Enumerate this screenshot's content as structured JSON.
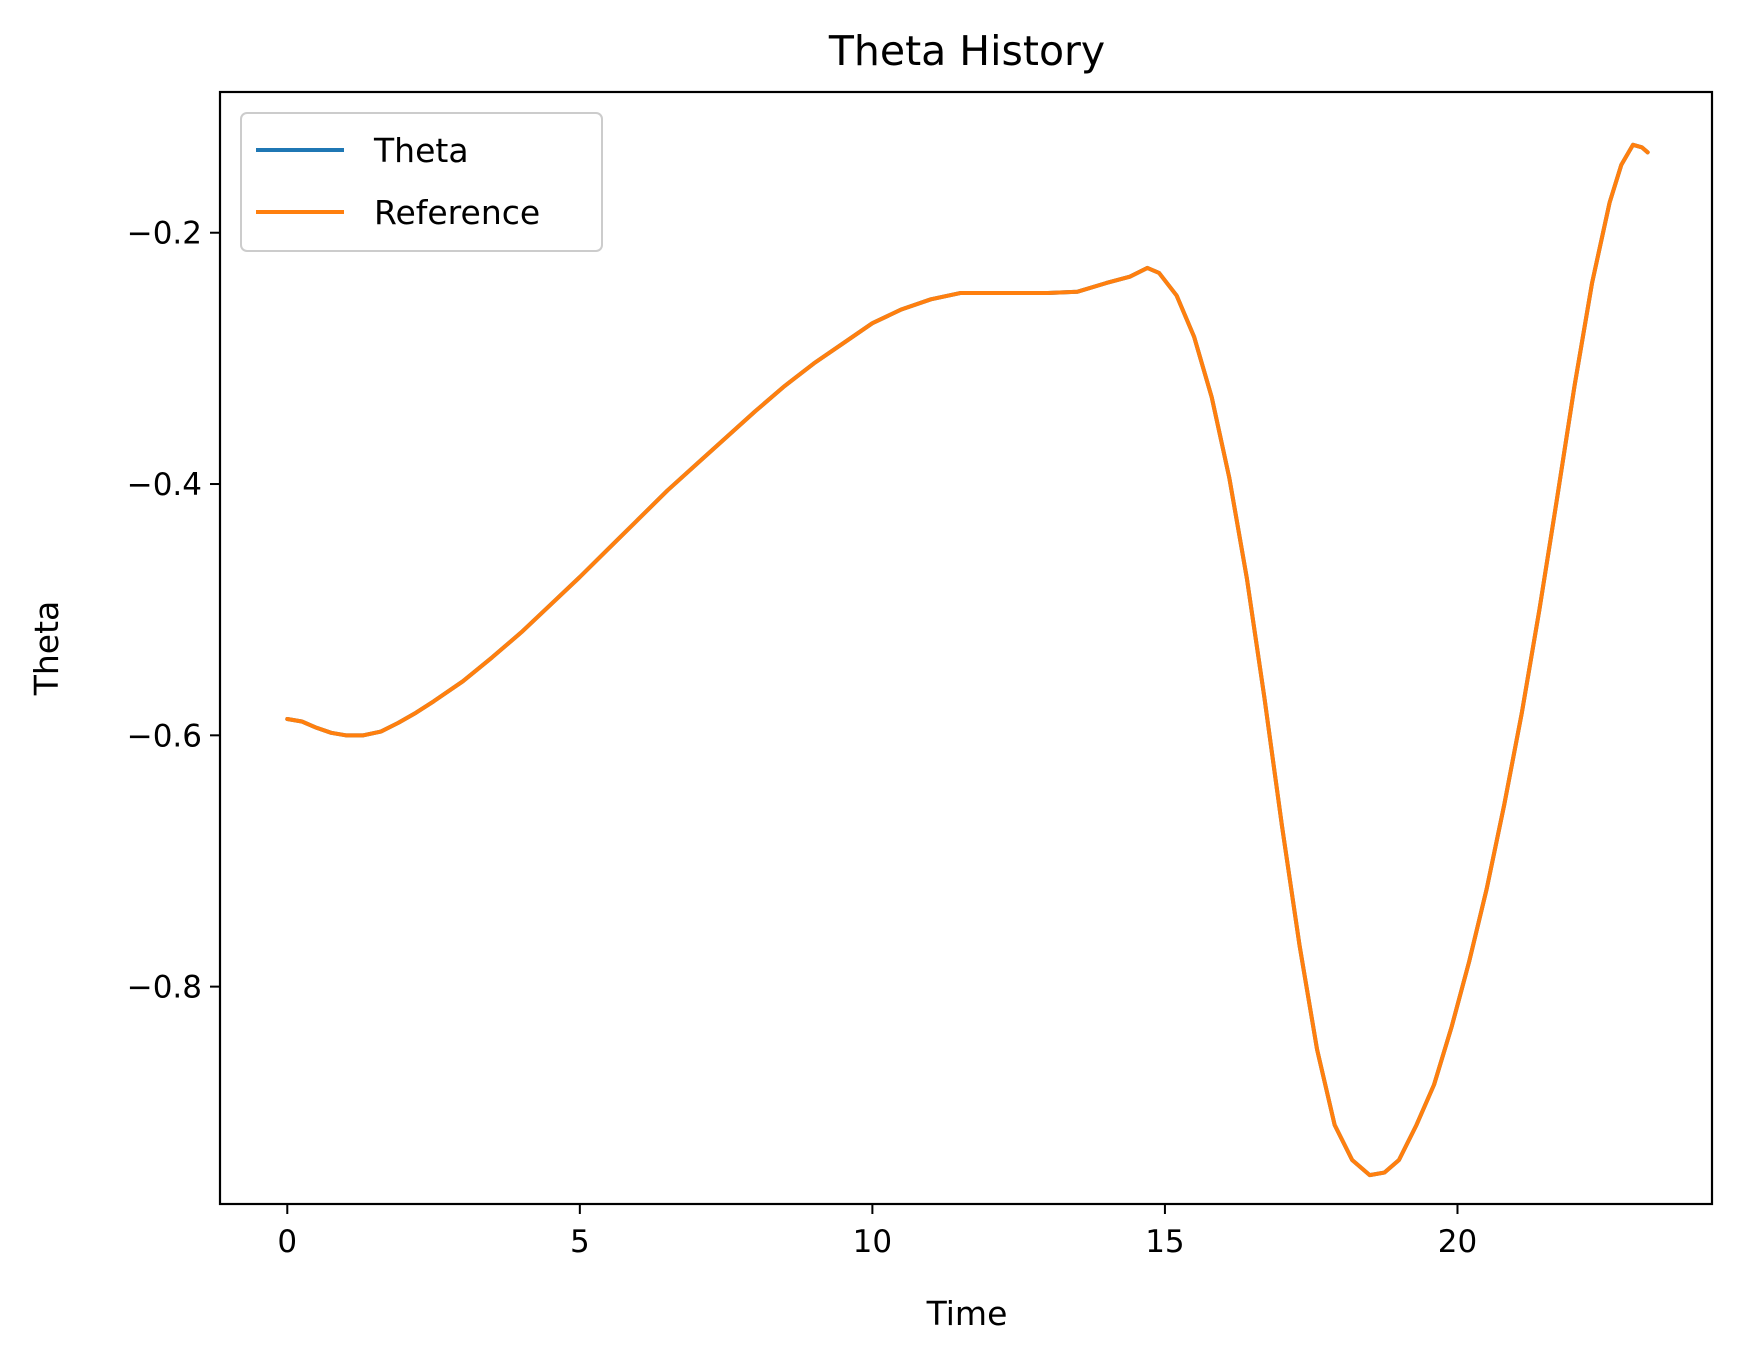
{
  "chart_data": {
    "type": "line",
    "title": "Theta History",
    "xlabel": "Time",
    "ylabel": "Theta",
    "xlim": [
      -1.15,
      24.35
    ],
    "ylim": [
      -0.973,
      -0.088
    ],
    "xticks": [
      0,
      5,
      10,
      15,
      20
    ],
    "xtick_labels": [
      "0",
      "5",
      "10",
      "15",
      "20"
    ],
    "yticks": [
      -0.2,
      -0.4,
      -0.6,
      -0.8
    ],
    "ytick_labels": [
      "−0.2",
      "−0.4",
      "−0.6",
      "−0.8"
    ],
    "grid": false,
    "legend": {
      "position": "upper-left",
      "entries": [
        "Theta",
        "Reference"
      ]
    },
    "series": [
      {
        "name": "Theta",
        "color": "#1f77b4",
        "x": [
          0.0,
          0.25,
          0.5,
          0.75,
          1.0,
          1.3,
          1.6,
          1.9,
          2.2,
          2.5,
          3.0,
          3.5,
          4.0,
          4.5,
          5.0,
          5.5,
          6.0,
          6.5,
          7.0,
          7.5,
          8.0,
          8.5,
          9.0,
          9.5,
          10.0,
          10.5,
          11.0,
          11.5,
          12.0,
          12.5,
          13.0,
          13.5,
          14.0,
          14.4,
          14.7,
          14.9,
          15.2,
          15.5,
          15.8,
          16.1,
          16.4,
          16.7,
          17.0,
          17.3,
          17.6,
          17.9,
          18.2,
          18.5,
          18.75,
          19.0,
          19.3,
          19.6,
          19.9,
          20.2,
          20.5,
          20.8,
          21.1,
          21.4,
          21.7,
          22.0,
          22.3,
          22.6,
          22.8,
          23.0,
          23.15,
          23.25
        ],
        "y": [
          -0.587,
          -0.589,
          -0.594,
          -0.598,
          -0.6,
          -0.6,
          -0.597,
          -0.59,
          -0.582,
          -0.573,
          -0.557,
          -0.538,
          -0.518,
          -0.496,
          -0.474,
          -0.451,
          -0.428,
          -0.405,
          -0.384,
          -0.363,
          -0.342,
          -0.322,
          -0.304,
          -0.288,
          -0.272,
          -0.261,
          -0.253,
          -0.248,
          -0.248,
          -0.248,
          -0.248,
          -0.247,
          -0.24,
          -0.235,
          -0.228,
          -0.232,
          -0.25,
          -0.283,
          -0.331,
          -0.395,
          -0.475,
          -0.57,
          -0.672,
          -0.767,
          -0.85,
          -0.91,
          -0.938,
          -0.95,
          -0.948,
          -0.938,
          -0.91,
          -0.878,
          -0.832,
          -0.78,
          -0.722,
          -0.655,
          -0.582,
          -0.5,
          -0.412,
          -0.322,
          -0.24,
          -0.176,
          -0.146,
          -0.13,
          -0.132,
          -0.136
        ]
      },
      {
        "name": "Reference",
        "color": "#ff7f0e",
        "x": [
          0.0,
          0.25,
          0.5,
          0.75,
          1.0,
          1.3,
          1.6,
          1.9,
          2.2,
          2.5,
          3.0,
          3.5,
          4.0,
          4.5,
          5.0,
          5.5,
          6.0,
          6.5,
          7.0,
          7.5,
          8.0,
          8.5,
          9.0,
          9.5,
          10.0,
          10.5,
          11.0,
          11.5,
          12.0,
          12.5,
          13.0,
          13.5,
          14.0,
          14.4,
          14.7,
          14.9,
          15.2,
          15.5,
          15.8,
          16.1,
          16.4,
          16.7,
          17.0,
          17.3,
          17.6,
          17.9,
          18.2,
          18.5,
          18.75,
          19.0,
          19.3,
          19.6,
          19.9,
          20.2,
          20.5,
          20.8,
          21.1,
          21.4,
          21.7,
          22.0,
          22.3,
          22.6,
          22.8,
          23.0,
          23.15,
          23.25
        ],
        "y": [
          -0.587,
          -0.589,
          -0.594,
          -0.598,
          -0.6,
          -0.6,
          -0.597,
          -0.59,
          -0.582,
          -0.573,
          -0.557,
          -0.538,
          -0.518,
          -0.496,
          -0.474,
          -0.451,
          -0.428,
          -0.405,
          -0.384,
          -0.363,
          -0.342,
          -0.322,
          -0.304,
          -0.288,
          -0.272,
          -0.261,
          -0.253,
          -0.248,
          -0.248,
          -0.248,
          -0.248,
          -0.247,
          -0.24,
          -0.235,
          -0.228,
          -0.232,
          -0.25,
          -0.283,
          -0.331,
          -0.395,
          -0.475,
          -0.57,
          -0.672,
          -0.767,
          -0.85,
          -0.91,
          -0.938,
          -0.95,
          -0.948,
          -0.938,
          -0.91,
          -0.878,
          -0.832,
          -0.78,
          -0.722,
          -0.655,
          -0.582,
          -0.5,
          -0.412,
          -0.322,
          -0.24,
          -0.176,
          -0.146,
          -0.13,
          -0.132,
          -0.136
        ]
      }
    ]
  }
}
